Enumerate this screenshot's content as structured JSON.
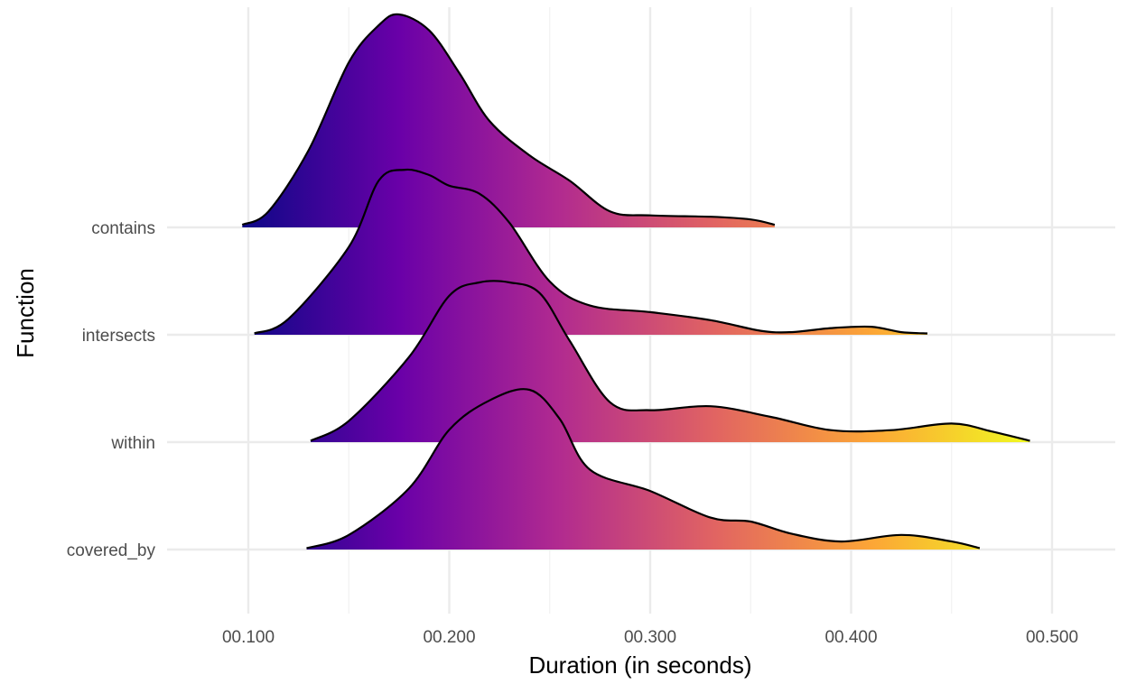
{
  "chart_data": {
    "type": "ridgeline",
    "xlabel": "Duration (in seconds)",
    "ylabel": "Function",
    "xlim": [
      0.06,
      0.53
    ],
    "x_ticks": [
      0.1,
      0.2,
      0.3,
      0.4,
      0.5
    ],
    "x_tick_labels": [
      "00.100",
      "00.200",
      "00.300",
      "00.400",
      "00.500"
    ],
    "y_categories": [
      "contains",
      "intersects",
      "within",
      "covered_by"
    ],
    "grid": true,
    "fill_gradient": {
      "colormap": "plasma",
      "by": "x",
      "range": [
        0.097,
        0.489
      ],
      "stops": [
        "#0d0887",
        "#6a00a8",
        "#b12a90",
        "#e16462",
        "#fca636",
        "#f0f921"
      ]
    },
    "series": [
      {
        "name": "contains",
        "x": [
          0.097,
          0.11,
          0.13,
          0.15,
          0.165,
          0.175,
          0.19,
          0.205,
          0.22,
          0.24,
          0.26,
          0.28,
          0.3,
          0.33,
          0.35,
          0.362
        ],
        "density": [
          0.1,
          0.6,
          2.9,
          6.2,
          7.6,
          8.0,
          7.4,
          5.8,
          4.0,
          2.7,
          1.75,
          0.6,
          0.45,
          0.4,
          0.3,
          0.1
        ]
      },
      {
        "name": "intersects",
        "x": [
          0.103,
          0.12,
          0.15,
          0.165,
          0.178,
          0.19,
          0.2,
          0.215,
          0.23,
          0.25,
          0.27,
          0.3,
          0.33,
          0.355,
          0.37,
          0.39,
          0.41,
          0.425,
          0.438
        ],
        "density": [
          0.05,
          0.6,
          3.3,
          5.8,
          6.2,
          6.0,
          5.6,
          5.3,
          4.2,
          2.0,
          1.1,
          0.85,
          0.55,
          0.15,
          0.1,
          0.25,
          0.3,
          0.1,
          0.05
        ]
      },
      {
        "name": "within",
        "x": [
          0.131,
          0.15,
          0.18,
          0.2,
          0.215,
          0.23,
          0.245,
          0.26,
          0.28,
          0.3,
          0.33,
          0.36,
          0.39,
          0.42,
          0.45,
          0.47,
          0.489
        ],
        "density": [
          0.05,
          0.8,
          3.2,
          5.5,
          6.0,
          6.0,
          5.6,
          3.8,
          1.5,
          1.2,
          1.35,
          0.95,
          0.45,
          0.45,
          0.7,
          0.4,
          0.05
        ]
      },
      {
        "name": "covered_by",
        "x": [
          0.129,
          0.15,
          0.18,
          0.2,
          0.22,
          0.24,
          0.255,
          0.27,
          0.3,
          0.33,
          0.35,
          0.37,
          0.395,
          0.425,
          0.45,
          0.464
        ],
        "density": [
          0.05,
          0.55,
          2.3,
          4.5,
          5.6,
          6.0,
          4.9,
          3.0,
          2.2,
          1.2,
          1.05,
          0.6,
          0.3,
          0.55,
          0.3,
          0.05
        ]
      }
    ]
  }
}
